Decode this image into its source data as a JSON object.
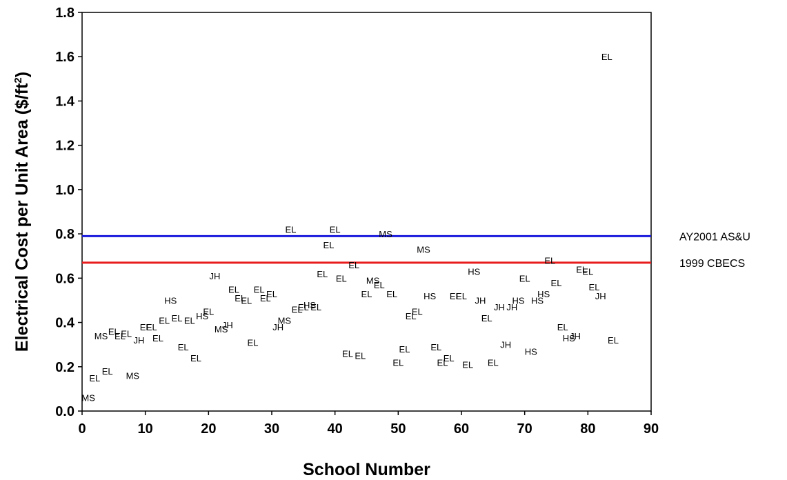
{
  "chart_data": {
    "type": "scatter",
    "title": "",
    "xlabel": "School Number",
    "ylabel_main": "Electrical Cost per Unit Area ($/ft",
    "ylabel_sup": "2",
    "ylabel_end": ")",
    "xlim": [
      0,
      90
    ],
    "ylim": [
      0,
      1.8
    ],
    "x_ticks": [
      "0",
      "10",
      "20",
      "30",
      "40",
      "50",
      "60",
      "70",
      "80",
      "90"
    ],
    "y_ticks": [
      "0.0",
      "0.2",
      "0.4",
      "0.6",
      "0.8",
      "1.0",
      "1.2",
      "1.4",
      "1.6",
      "1.8"
    ],
    "grid": false,
    "reference_lines": [
      {
        "name": "AY2001 AS&U",
        "value": 0.79,
        "color": "#1a1adc"
      },
      {
        "name": "1999 CBECS",
        "value": 0.67,
        "color": "#e81c1c"
      }
    ],
    "points": [
      {
        "x": 1,
        "y": 0.06,
        "label": "MS"
      },
      {
        "x": 2,
        "y": 0.15,
        "label": "EL"
      },
      {
        "x": 4,
        "y": 0.18,
        "label": "EL"
      },
      {
        "x": 3,
        "y": 0.34,
        "label": "MS"
      },
      {
        "x": 5,
        "y": 0.36,
        "label": "EL"
      },
      {
        "x": 6,
        "y": 0.34,
        "label": "EL"
      },
      {
        "x": 7,
        "y": 0.35,
        "label": "EL"
      },
      {
        "x": 8,
        "y": 0.16,
        "label": "MS"
      },
      {
        "x": 9,
        "y": 0.32,
        "label": "JH"
      },
      {
        "x": 10,
        "y": 0.38,
        "label": "EL"
      },
      {
        "x": 11,
        "y": 0.38,
        "label": "EL"
      },
      {
        "x": 12,
        "y": 0.33,
        "label": "EL"
      },
      {
        "x": 13,
        "y": 0.41,
        "label": "EL"
      },
      {
        "x": 14,
        "y": 0.5,
        "label": "HS"
      },
      {
        "x": 15,
        "y": 0.42,
        "label": "EL"
      },
      {
        "x": 16,
        "y": 0.29,
        "label": "EL"
      },
      {
        "x": 17,
        "y": 0.41,
        "label": "EL"
      },
      {
        "x": 18,
        "y": 0.24,
        "label": "EL"
      },
      {
        "x": 19,
        "y": 0.43,
        "label": "HS"
      },
      {
        "x": 20,
        "y": 0.45,
        "label": "EL"
      },
      {
        "x": 21,
        "y": 0.61,
        "label": "JH"
      },
      {
        "x": 22,
        "y": 0.37,
        "label": "MS"
      },
      {
        "x": 23,
        "y": 0.39,
        "label": "JH"
      },
      {
        "x": 24,
        "y": 0.55,
        "label": "EL"
      },
      {
        "x": 25,
        "y": 0.51,
        "label": "EL"
      },
      {
        "x": 26,
        "y": 0.5,
        "label": "EL"
      },
      {
        "x": 27,
        "y": 0.31,
        "label": "EL"
      },
      {
        "x": 28,
        "y": 0.55,
        "label": "EL"
      },
      {
        "x": 29,
        "y": 0.51,
        "label": "EL"
      },
      {
        "x": 30,
        "y": 0.53,
        "label": "EL"
      },
      {
        "x": 31,
        "y": 0.38,
        "label": "JH"
      },
      {
        "x": 32,
        "y": 0.41,
        "label": "MS"
      },
      {
        "x": 33,
        "y": 0.82,
        "label": "EL"
      },
      {
        "x": 34,
        "y": 0.46,
        "label": "EL"
      },
      {
        "x": 35,
        "y": 0.47,
        "label": "EL"
      },
      {
        "x": 36,
        "y": 0.48,
        "label": "HS"
      },
      {
        "x": 37,
        "y": 0.47,
        "label": "EL"
      },
      {
        "x": 38,
        "y": 0.62,
        "label": "EL"
      },
      {
        "x": 39,
        "y": 0.75,
        "label": "EL"
      },
      {
        "x": 40,
        "y": 0.82,
        "label": "EL"
      },
      {
        "x": 41,
        "y": 0.6,
        "label": "EL"
      },
      {
        "x": 42,
        "y": 0.26,
        "label": "EL"
      },
      {
        "x": 43,
        "y": 0.66,
        "label": "EL"
      },
      {
        "x": 44,
        "y": 0.25,
        "label": "EL"
      },
      {
        "x": 45,
        "y": 0.53,
        "label": "EL"
      },
      {
        "x": 46,
        "y": 0.59,
        "label": "MS"
      },
      {
        "x": 47,
        "y": 0.57,
        "label": "EL"
      },
      {
        "x": 48,
        "y": 0.8,
        "label": "MS"
      },
      {
        "x": 49,
        "y": 0.53,
        "label": "EL"
      },
      {
        "x": 50,
        "y": 0.22,
        "label": "EL"
      },
      {
        "x": 51,
        "y": 0.28,
        "label": "EL"
      },
      {
        "x": 52,
        "y": 0.43,
        "label": "EL"
      },
      {
        "x": 53,
        "y": 0.45,
        "label": "EL"
      },
      {
        "x": 54,
        "y": 0.73,
        "label": "MS"
      },
      {
        "x": 55,
        "y": 0.52,
        "label": "HS"
      },
      {
        "x": 56,
        "y": 0.29,
        "label": "EL"
      },
      {
        "x": 57,
        "y": 0.22,
        "label": "EL"
      },
      {
        "x": 58,
        "y": 0.24,
        "label": "EL"
      },
      {
        "x": 59,
        "y": 0.52,
        "label": "EL"
      },
      {
        "x": 60,
        "y": 0.52,
        "label": "EL"
      },
      {
        "x": 61,
        "y": 0.21,
        "label": "EL"
      },
      {
        "x": 62,
        "y": 0.63,
        "label": "HS"
      },
      {
        "x": 63,
        "y": 0.5,
        "label": "JH"
      },
      {
        "x": 64,
        "y": 0.42,
        "label": "EL"
      },
      {
        "x": 65,
        "y": 0.22,
        "label": "EL"
      },
      {
        "x": 66,
        "y": 0.47,
        "label": "JH"
      },
      {
        "x": 67,
        "y": 0.3,
        "label": "JH"
      },
      {
        "x": 68,
        "y": 0.47,
        "label": "JH"
      },
      {
        "x": 69,
        "y": 0.5,
        "label": "HS"
      },
      {
        "x": 70,
        "y": 0.6,
        "label": "EL"
      },
      {
        "x": 71,
        "y": 0.27,
        "label": "HS"
      },
      {
        "x": 72,
        "y": 0.5,
        "label": "HS"
      },
      {
        "x": 73,
        "y": 0.53,
        "label": "HS"
      },
      {
        "x": 74,
        "y": 0.68,
        "label": "EL"
      },
      {
        "x": 75,
        "y": 0.58,
        "label": "EL"
      },
      {
        "x": 76,
        "y": 0.38,
        "label": "EL"
      },
      {
        "x": 77,
        "y": 0.33,
        "label": "HS"
      },
      {
        "x": 78,
        "y": 0.34,
        "label": "JH"
      },
      {
        "x": 79,
        "y": 0.64,
        "label": "EL"
      },
      {
        "x": 80,
        "y": 0.63,
        "label": "EL"
      },
      {
        "x": 81,
        "y": 0.56,
        "label": "EL"
      },
      {
        "x": 82,
        "y": 0.52,
        "label": "JH"
      },
      {
        "x": 83,
        "y": 1.6,
        "label": "EL"
      },
      {
        "x": 84,
        "y": 0.32,
        "label": "EL"
      }
    ]
  }
}
